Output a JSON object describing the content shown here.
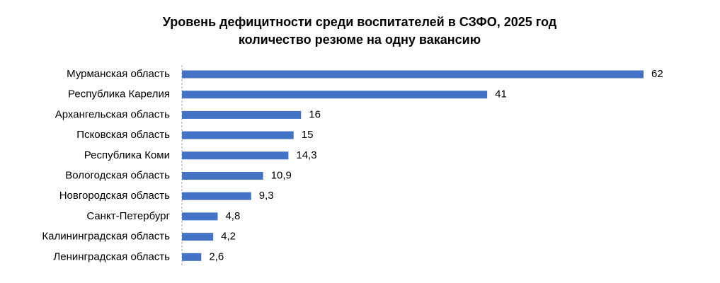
{
  "chart_data": {
    "type": "hbar",
    "title": "Уровень дефицитности среди воспитателей в СЗФО, 2025 год",
    "subtitle": "количество резюме на одну вакансию",
    "categories": [
      "Мурманская область",
      "Республика Карелия",
      "Архангельская область",
      "Псковская область",
      "Республика Коми",
      "Вологодская область",
      "Новгородская область",
      "Санкт-Петербург",
      "Калининградская  область",
      "Ленинградская область"
    ],
    "values": [
      62,
      41,
      16,
      15,
      14.3,
      10.9,
      9.3,
      4.8,
      4.2,
      2.6
    ],
    "value_labels": [
      "62",
      "41",
      "16",
      "15",
      "14,3",
      "10,9",
      "9,3",
      "4,8",
      "4,2",
      "2,6"
    ],
    "color": "#4472c4"
  }
}
